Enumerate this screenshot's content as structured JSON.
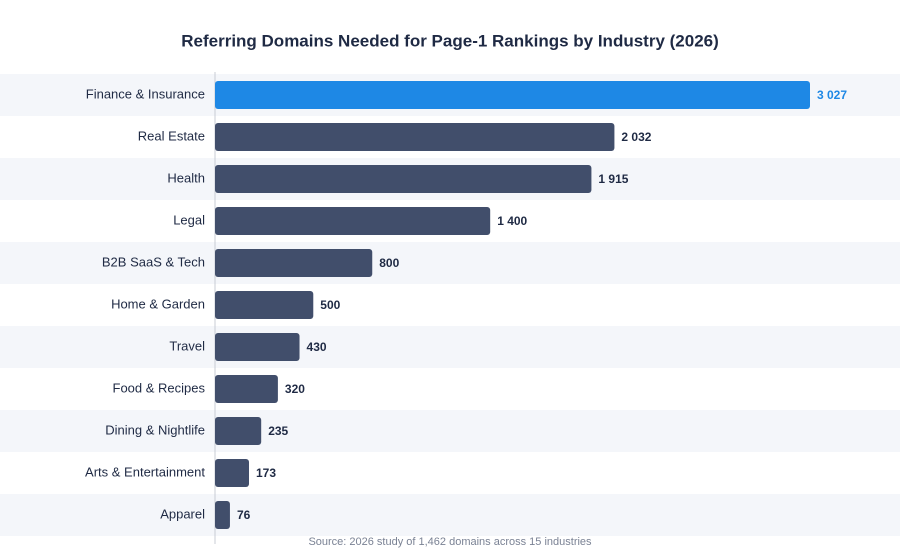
{
  "chart_data": {
    "type": "hbar",
    "title": "Referring Domains Needed for Page-1 Rankings by Industry (2026)",
    "categories": [
      "Finance & Insurance",
      "Real Estate",
      "Health",
      "Legal",
      "B2B SaaS & Tech",
      "Home & Garden",
      "Travel",
      "Food & Recipes",
      "Dining & Nightlife",
      "Arts & Entertainment",
      "Apparel"
    ],
    "values": [
      3027,
      2032,
      1915,
      1400,
      800,
      500,
      430,
      320,
      235,
      173,
      76
    ],
    "value_labels": [
      "3 027",
      "2 032",
      "1 915",
      "1 400",
      "800",
      "500",
      "430",
      "320",
      "235",
      "173",
      "76"
    ],
    "colors": [
      "#1e88e5",
      "#414e6b",
      "#414e6b",
      "#414e6b",
      "#414e6b",
      "#414e6b",
      "#414e6b",
      "#414e6b",
      "#414e6b",
      "#414e6b",
      "#414e6b"
    ],
    "source": "Source: 2026 study of 1,462 domains across 15 industries"
  }
}
